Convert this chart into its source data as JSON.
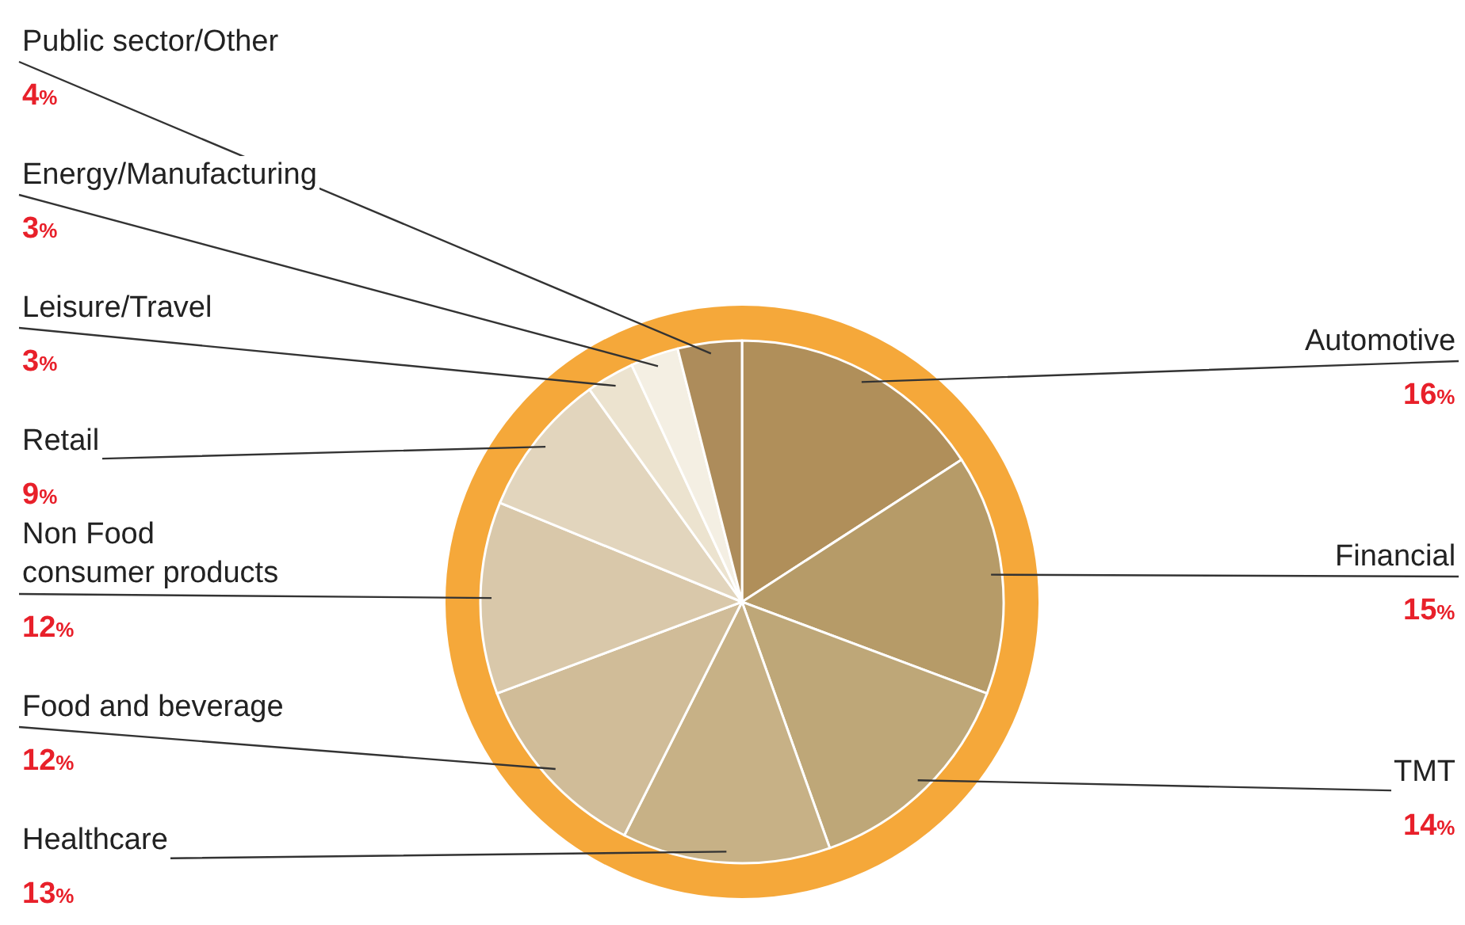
{
  "chart_data": {
    "type": "pie",
    "categories": [
      "Automotive",
      "Financial",
      "TMT",
      "Healthcare",
      "Food and beverage",
      "Non Food\nconsumer products",
      "Retail",
      "Leisure/Travel",
      "Energy/Manufacturing",
      "Public sector/Other"
    ],
    "values": [
      16,
      15,
      14,
      13,
      12,
      12,
      9,
      3,
      3,
      4
    ],
    "value_labels": [
      "16%",
      "15%",
      "14%",
      "13%",
      "12%",
      "12%",
      "9%",
      "3%",
      "3%",
      "4%"
    ],
    "colors": [
      "#b08f5a",
      "#b69b68",
      "#bea778",
      "#c7b186",
      "#d0bc98",
      "#d9c8aa",
      "#e2d5bd",
      "#ece3cf",
      "#f4efe3",
      "#ad8c5b"
    ]
  }
}
